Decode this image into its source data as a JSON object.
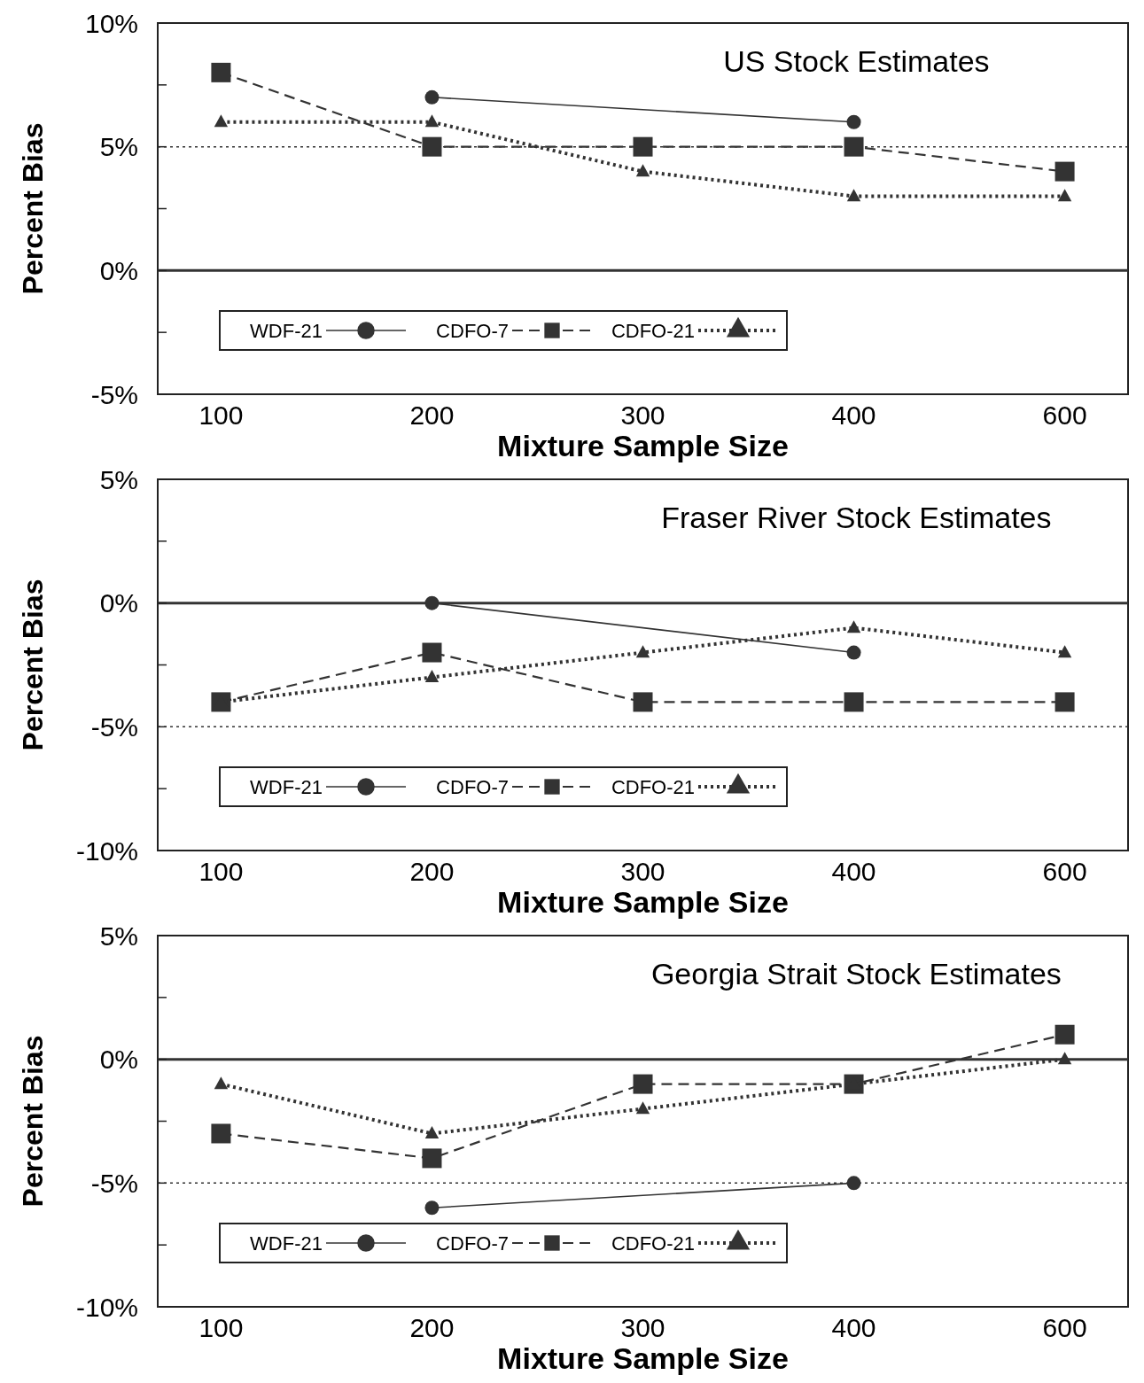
{
  "chart_data": [
    {
      "type": "line",
      "title": "US Stock Estimates",
      "xlabel": "Mixture Sample Size",
      "ylabel": "Percent Bias",
      "categories": [
        "100",
        "200",
        "300",
        "400",
        "600"
      ],
      "ylim": [
        -5,
        10
      ],
      "yticks": [
        {
          "value": -5,
          "label": "-5%"
        },
        {
          "value": -2.5,
          "label": null
        },
        {
          "value": 0,
          "label": "0%"
        },
        {
          "value": 2.5,
          "label": null
        },
        {
          "value": 5,
          "label": "5%"
        },
        {
          "value": 7.5,
          "label": null
        },
        {
          "value": 10,
          "label": "10%"
        }
      ],
      "legend": "bottom left",
      "grid": false,
      "ref_lines": [
        {
          "axis": "y",
          "value": 0,
          "line_style": "solid"
        },
        {
          "axis": "y",
          "value": 5,
          "line_style": "dotted"
        }
      ],
      "series": [
        {
          "name": "WDF-21",
          "color": "#333333",
          "marker": "circle",
          "line_style": "solid",
          "values": [
            null,
            7,
            null,
            6,
            null
          ]
        },
        {
          "name": "CDFO-7",
          "color": "#333333",
          "marker": "square",
          "line_style": "dashed",
          "values": [
            8,
            5,
            5,
            5,
            4
          ]
        },
        {
          "name": "CDFO-21",
          "color": "#333333",
          "marker": "triangle",
          "line_style": "dotted",
          "values": [
            6,
            6,
            4,
            3,
            3
          ]
        }
      ]
    },
    {
      "type": "line",
      "title": "Fraser River Stock Estimates",
      "xlabel": "Mixture Sample Size",
      "ylabel": "Percent Bias",
      "categories": [
        "100",
        "200",
        "300",
        "400",
        "600"
      ],
      "ylim": [
        -10,
        5
      ],
      "yticks": [
        {
          "value": -10,
          "label": "-10%"
        },
        {
          "value": -7.5,
          "label": null
        },
        {
          "value": -5,
          "label": "-5%"
        },
        {
          "value": -2.5,
          "label": null
        },
        {
          "value": 0,
          "label": "0%"
        },
        {
          "value": 2.5,
          "label": null
        },
        {
          "value": 5,
          "label": "5%"
        }
      ],
      "legend": "bottom left",
      "grid": false,
      "ref_lines": [
        {
          "axis": "y",
          "value": 0,
          "line_style": "solid"
        },
        {
          "axis": "y",
          "value": -5,
          "line_style": "dotted"
        }
      ],
      "series": [
        {
          "name": "WDF-21",
          "color": "#333333",
          "marker": "circle",
          "line_style": "solid",
          "values": [
            null,
            0,
            null,
            -2,
            null
          ]
        },
        {
          "name": "CDFO-7",
          "color": "#333333",
          "marker": "square",
          "line_style": "dashed",
          "values": [
            -4,
            -2,
            -4,
            -4,
            -4
          ]
        },
        {
          "name": "CDFO-21",
          "color": "#333333",
          "marker": "triangle",
          "line_style": "dotted",
          "values": [
            -4,
            -3,
            -2,
            -1,
            -2
          ]
        }
      ]
    },
    {
      "type": "line",
      "title": "Georgia Strait Stock Estimates",
      "xlabel": "Mixture Sample Size",
      "ylabel": "Percent Bias",
      "categories": [
        "100",
        "200",
        "300",
        "400",
        "600"
      ],
      "ylim": [
        -10,
        5
      ],
      "yticks": [
        {
          "value": -10,
          "label": "-10%"
        },
        {
          "value": -7.5,
          "label": null
        },
        {
          "value": -5,
          "label": "-5%"
        },
        {
          "value": -2.5,
          "label": null
        },
        {
          "value": 0,
          "label": "0%"
        },
        {
          "value": 2.5,
          "label": null
        },
        {
          "value": 5,
          "label": "5%"
        }
      ],
      "legend": "bottom left",
      "grid": false,
      "ref_lines": [
        {
          "axis": "y",
          "value": 0,
          "line_style": "solid"
        },
        {
          "axis": "y",
          "value": -5,
          "line_style": "dotted"
        }
      ],
      "series": [
        {
          "name": "WDF-21",
          "color": "#333333",
          "marker": "circle",
          "line_style": "solid",
          "values": [
            null,
            -6,
            null,
            -5,
            null
          ]
        },
        {
          "name": "CDFO-7",
          "color": "#333333",
          "marker": "square",
          "line_style": "dashed",
          "values": [
            -3,
            -4,
            -1,
            -1,
            1
          ]
        },
        {
          "name": "CDFO-21",
          "color": "#333333",
          "marker": "triangle",
          "line_style": "dotted",
          "values": [
            -1,
            -3,
            -2,
            -1,
            0
          ]
        }
      ]
    }
  ]
}
